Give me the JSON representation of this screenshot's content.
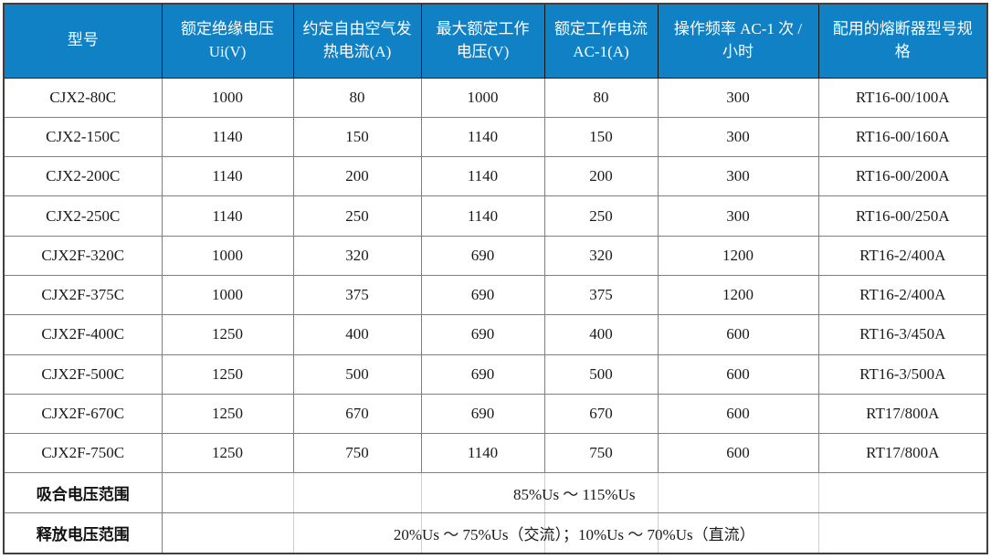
{
  "colors": {
    "header_bg": "#0f81c4",
    "header_text": "#ffffff",
    "outer_border": "#3f3f3f",
    "grid_border": "#7f7f7f",
    "header_grid": "#151515",
    "body_text": "#1a1a1a",
    "faint_grid": "#cfcfcf"
  },
  "table": {
    "columns": [
      "型号",
      "额定绝缘电压 Ui(V)",
      "约定自由空气发热电流(A)",
      "最大额定工作电压(V)",
      "额定工作电流 AC-1(A)",
      "操作频率 AC-1 次 / 小时",
      "配用的熔断器型号规格"
    ],
    "rows": [
      [
        "CJX2-80C",
        "1000",
        "80",
        "1000",
        "80",
        "300",
        "RT16-00/100A"
      ],
      [
        "CJX2-150C",
        "1140",
        "150",
        "1140",
        "150",
        "300",
        "RT16-00/160A"
      ],
      [
        "CJX2-200C",
        "1140",
        "200",
        "1140",
        "200",
        "300",
        "RT16-00/200A"
      ],
      [
        "CJX2-250C",
        "1140",
        "250",
        "1140",
        "250",
        "300",
        "RT16-00/250A"
      ],
      [
        "CJX2F-320C",
        "1000",
        "320",
        "690",
        "320",
        "1200",
        "RT16-2/400A"
      ],
      [
        "CJX2F-375C",
        "1000",
        "375",
        "690",
        "375",
        "1200",
        "RT16-2/400A"
      ],
      [
        "CJX2F-400C",
        "1250",
        "400",
        "690",
        "400",
        "600",
        "RT16-3/450A"
      ],
      [
        "CJX2F-500C",
        "1250",
        "500",
        "690",
        "500",
        "600",
        "RT16-3/500A"
      ],
      [
        "CJX2F-670C",
        "1250",
        "670",
        "690",
        "670",
        "600",
        "RT17/800A"
      ],
      [
        "CJX2F-750C",
        "1250",
        "750",
        "1140",
        "750",
        "600",
        "RT17/800A"
      ]
    ],
    "footer_rows": [
      {
        "label": "吸合电压范围",
        "value": "85%Us ～ 115%Us"
      },
      {
        "label": "释放电压范围",
        "value": "20%Us ～ 75%Us（交流）；10%Us ～ 70%Us（直流）"
      }
    ]
  }
}
